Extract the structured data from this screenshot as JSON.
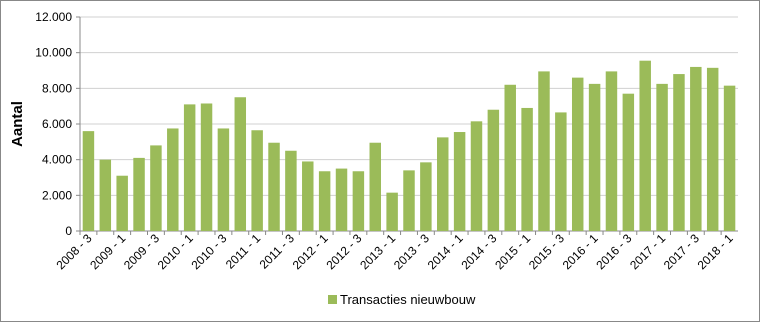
{
  "chart_data": {
    "type": "bar",
    "y_label": "Aantal",
    "categories": [
      "2008 - 3",
      null,
      "2009 - 1",
      null,
      "2009 - 3",
      null,
      "2010 - 1",
      null,
      "2010 - 3",
      null,
      "2011 - 1",
      null,
      "2011 - 3",
      null,
      "2012 - 1",
      null,
      "2012 - 3",
      null,
      "2013 - 1",
      null,
      "2013 - 3",
      null,
      "2014 - 1",
      null,
      "2014 - 3",
      null,
      "2015 - 1",
      null,
      "2015 - 3",
      null,
      "2016 - 1",
      null,
      "2016 - 3",
      null,
      "2017 - 1",
      null,
      "2017 - 3",
      null,
      "2018 - 1"
    ],
    "series": [
      {
        "name": "Transacties nieuwbouw",
        "color": "#9bbb59",
        "values": [
          5600,
          4000,
          3100,
          4100,
          4800,
          5750,
          7100,
          7150,
          5750,
          7500,
          5650,
          4950,
          4500,
          3900,
          3350,
          3500,
          3350,
          4950,
          2150,
          3400,
          3850,
          5250,
          5550,
          6150,
          6800,
          8200,
          6900,
          8950,
          6650,
          8600,
          8250,
          8950,
          7700,
          9550,
          8250,
          8800,
          9200,
          9150,
          8150
        ]
      }
    ],
    "ylim": [
      0,
      12000
    ],
    "yticks": [
      0,
      {
        "value": 2000,
        "label": "2.000"
      },
      {
        "value": 4000,
        "label": "4.000"
      },
      {
        "value": 6000,
        "label": "6.000"
      },
      {
        "value": 8000,
        "label": "8.000"
      },
      {
        "value": 10000,
        "label": "10.000"
      },
      {
        "value": 12000,
        "label": "12.000"
      }
    ],
    "grid": true,
    "legend": "bottom"
  }
}
